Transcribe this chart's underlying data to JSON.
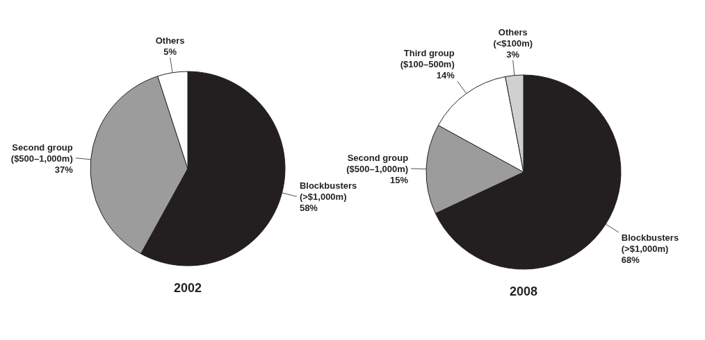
{
  "chart_data": [
    {
      "type": "pie",
      "title": "2002",
      "categories": [
        "Blockbusters (>$1,000m)",
        "Second group ($500–1,000m)",
        "Others"
      ],
      "values": [
        58,
        37,
        5
      ],
      "colors": [
        "#231f20",
        "#9c9c9c",
        "#ffffff"
      ],
      "value_labels": [
        "58%",
        "37%",
        "5%"
      ]
    },
    {
      "type": "pie",
      "title": "2008",
      "categories": [
        "Blockbusters (>$1,000m)",
        "Second group ($500–1,000m)",
        "Third group ($100–500m)",
        "Others (<$100m)"
      ],
      "values": [
        68,
        15,
        14,
        3
      ],
      "colors": [
        "#231f20",
        "#9c9c9c",
        "#ffffff",
        "#d0d0d0"
      ],
      "value_labels": [
        "68%",
        "15%",
        "14%",
        "3%"
      ]
    }
  ]
}
